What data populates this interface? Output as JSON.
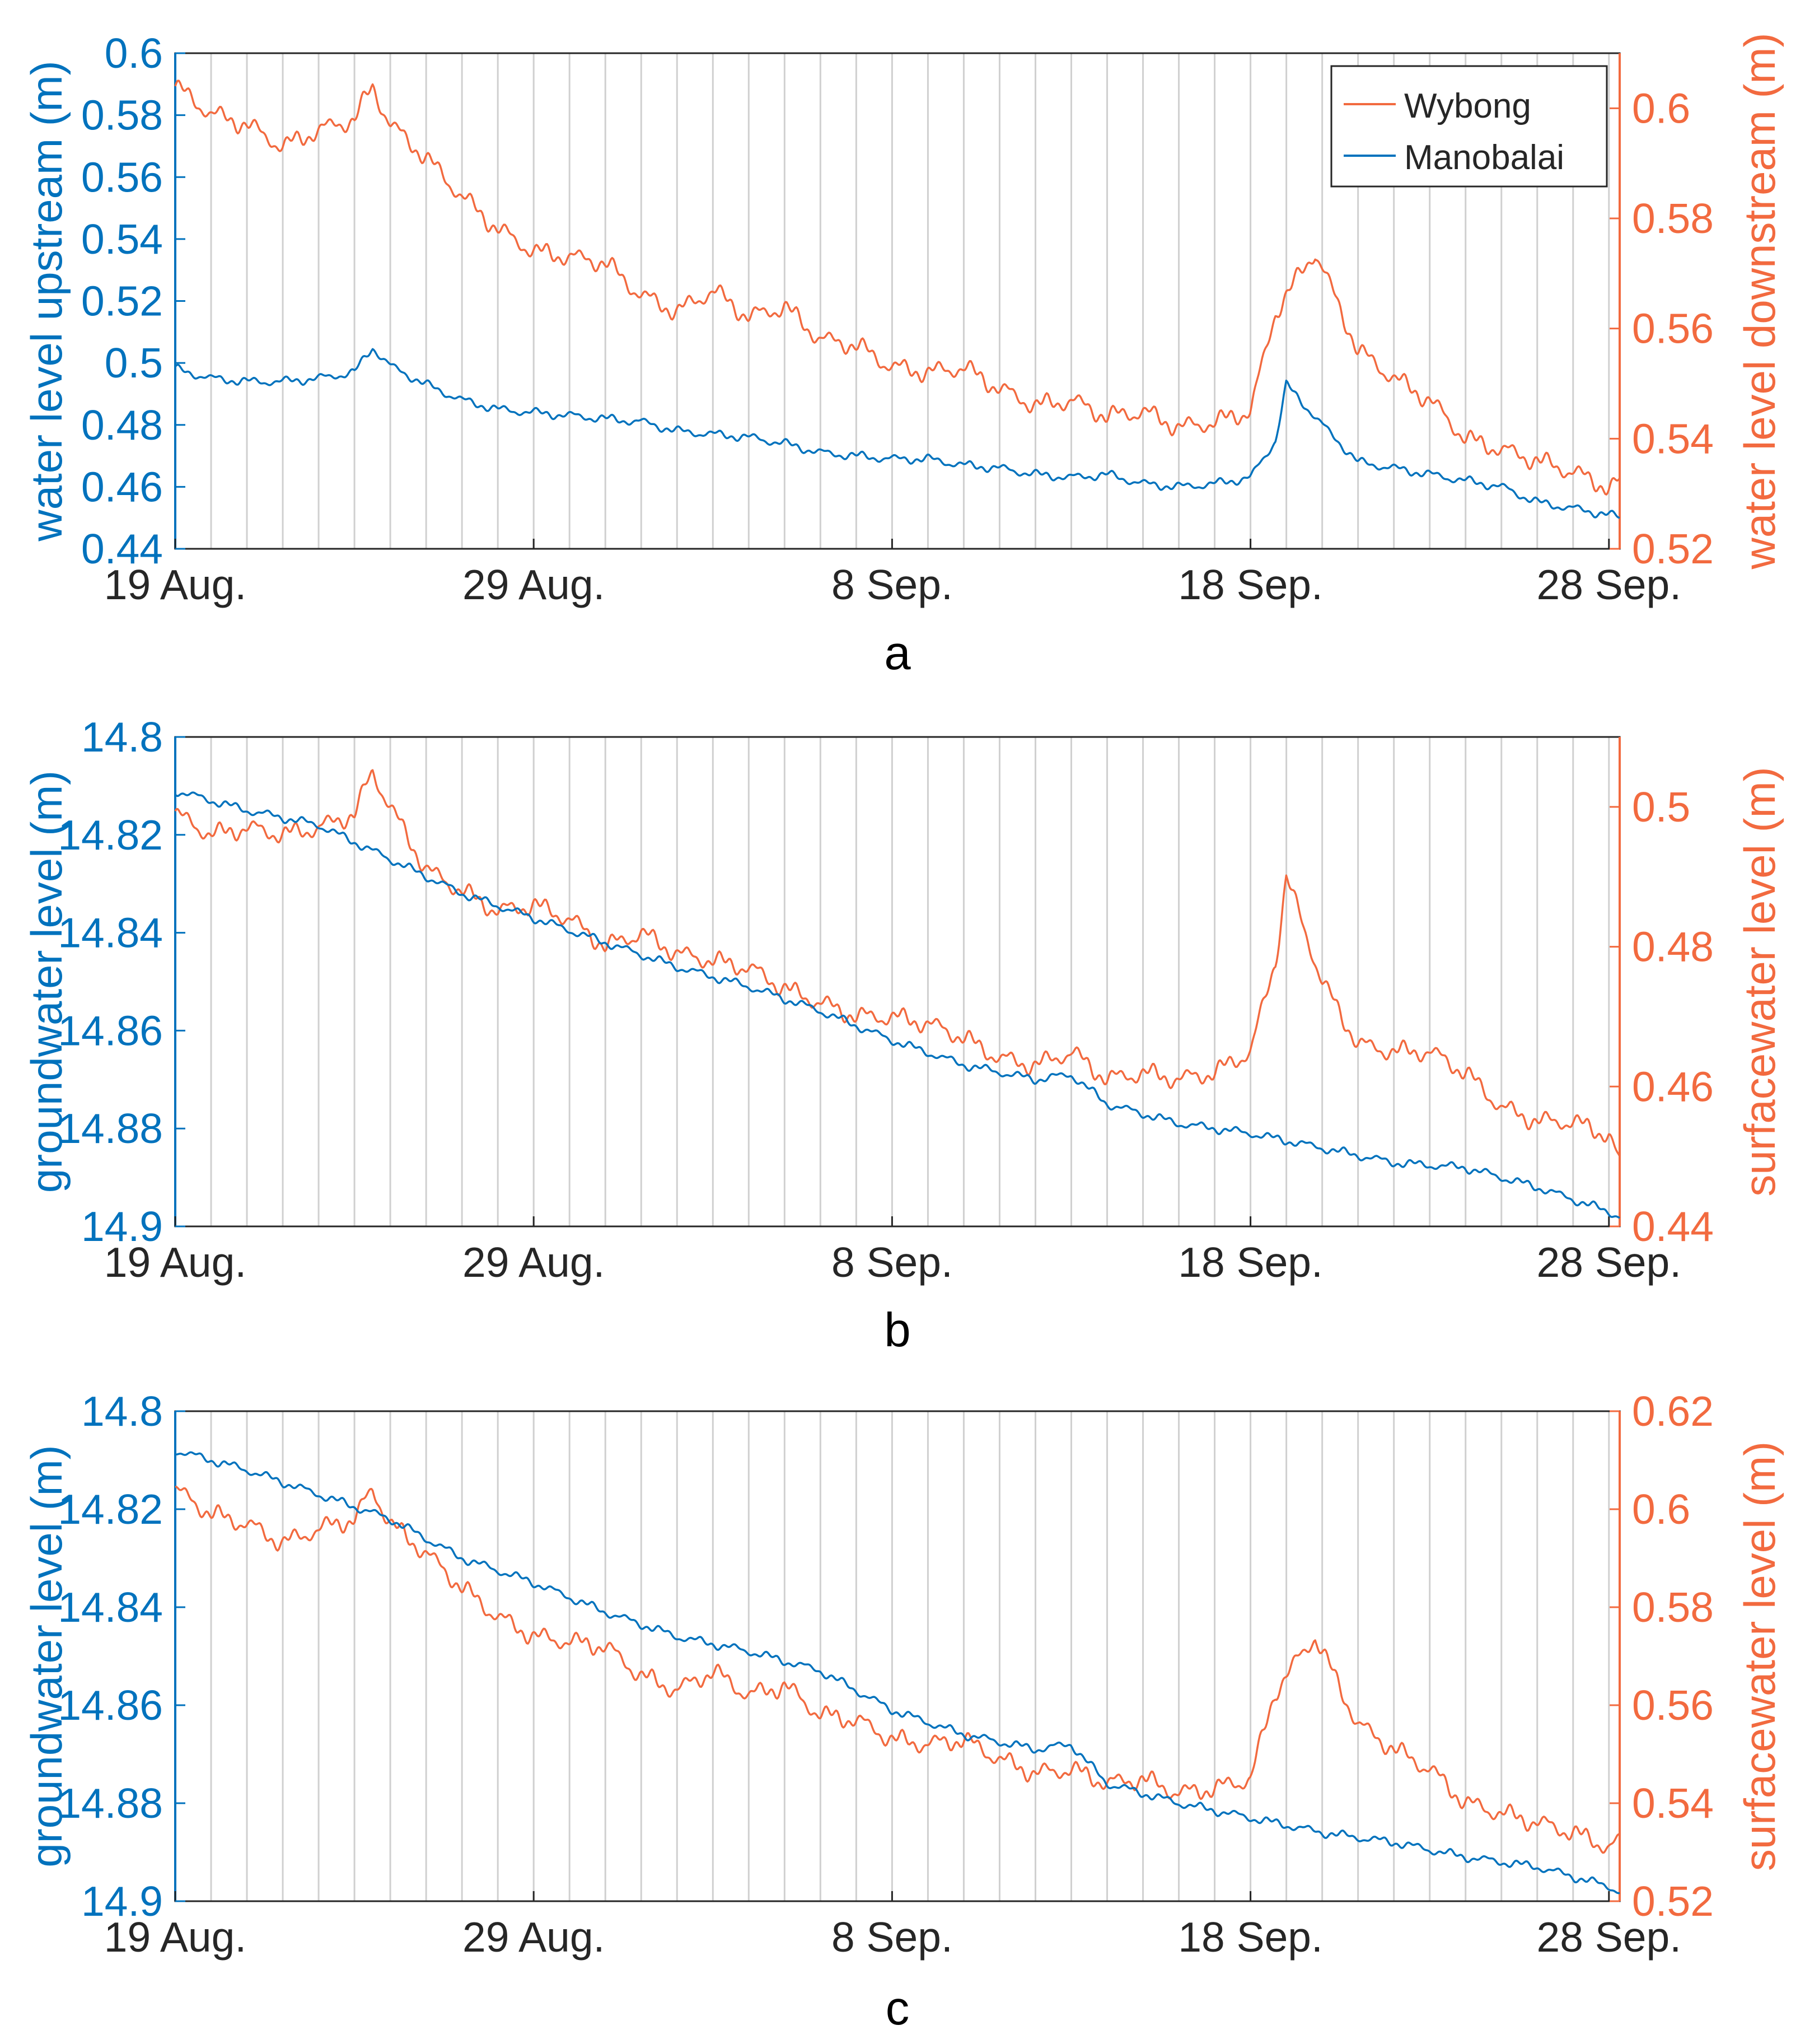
{
  "colors": {
    "left_axis": "#0072BD",
    "right_axis": "#F26A3F",
    "grid": "#D0D0D0",
    "axis": "#262626"
  },
  "chart_data": [
    {
      "panel_label": "a",
      "type": "line",
      "x_tick_labels": [
        "19 Aug.",
        "29 Aug.",
        "8 Sep.",
        "18 Sep.",
        "28 Sep."
      ],
      "x_tick_days": [
        0,
        10,
        20,
        30,
        40
      ],
      "x_range_days": [
        0,
        40.3
      ],
      "ylabel_left": "water level upstream (m)",
      "ylabel_right": "water level downstream (m)",
      "ylim_left": [
        0.44,
        0.6
      ],
      "ylim_right": [
        0.52,
        0.61
      ],
      "yticks_left": [
        "0.44",
        "0.46",
        "0.48",
        "0.5",
        "0.52",
        "0.54",
        "0.56",
        "0.58",
        "0.6"
      ],
      "yticks_right": [
        "0.52",
        "0.54",
        "0.56",
        "0.58",
        "0.6"
      ],
      "legend": {
        "position": "top-right",
        "entries": [
          "Wybong",
          "Manobalai"
        ]
      },
      "series": [
        {
          "name": "Wybong",
          "axis": "right",
          "x_days": [
            0,
            1,
            2,
            3,
            4,
            5,
            5.5,
            6,
            7,
            8,
            9,
            10,
            11,
            12,
            13,
            14,
            15,
            16,
            17,
            18,
            19,
            20,
            21,
            22,
            23,
            24,
            25,
            26,
            27,
            28,
            29,
            30,
            30.7,
            31,
            31.8,
            32,
            33,
            34,
            35,
            36,
            37,
            38,
            39,
            40,
            40.3
          ],
          "values": [
            0.604,
            0.599,
            0.597,
            0.593,
            0.596,
            0.598,
            0.604,
            0.597,
            0.591,
            0.584,
            0.578,
            0.574,
            0.573,
            0.572,
            0.566,
            0.563,
            0.567,
            0.562,
            0.564,
            0.558,
            0.557,
            0.553,
            0.552,
            0.553,
            0.549,
            0.546,
            0.547,
            0.544,
            0.545,
            0.542,
            0.543,
            0.545,
            0.563,
            0.566,
            0.574,
            0.571,
            0.556,
            0.551,
            0.547,
            0.54,
            0.538,
            0.536,
            0.534,
            0.531,
            0.532
          ]
        },
        {
          "name": "Manobalai",
          "axis": "left",
          "x_days": [
            0,
            1,
            2,
            3,
            4,
            5,
            5.5,
            6,
            7,
            8,
            9,
            10,
            11,
            12,
            13,
            14,
            15,
            16,
            17,
            18,
            19,
            20,
            21,
            22,
            23,
            24,
            25,
            26,
            27,
            28,
            29,
            30,
            30.7,
            31,
            32,
            33,
            34,
            35,
            36,
            37,
            38,
            39,
            40,
            40.3
          ],
          "values": [
            0.498,
            0.495,
            0.494,
            0.494,
            0.495,
            0.497,
            0.505,
            0.499,
            0.493,
            0.488,
            0.485,
            0.484,
            0.483,
            0.482,
            0.481,
            0.478,
            0.477,
            0.476,
            0.474,
            0.471,
            0.47,
            0.469,
            0.469,
            0.467,
            0.466,
            0.464,
            0.463,
            0.464,
            0.461,
            0.46,
            0.461,
            0.463,
            0.475,
            0.493,
            0.48,
            0.468,
            0.466,
            0.464,
            0.462,
            0.46,
            0.455,
            0.453,
            0.451,
            0.45
          ]
        }
      ]
    },
    {
      "panel_label": "b",
      "type": "line",
      "x_tick_labels": [
        "19 Aug.",
        "29 Aug.",
        "8 Sep.",
        "18 Sep.",
        "28 Sep."
      ],
      "x_tick_days": [
        0,
        10,
        20,
        30,
        40
      ],
      "x_range_days": [
        0,
        40.3
      ],
      "ylabel_left": "groundwater level (m)",
      "ylabel_right": "surfacewater level (m)",
      "ylim_left": [
        14.9,
        14.8
      ],
      "ylim_right": [
        0.44,
        0.51
      ],
      "yticks_left": [
        "14.8",
        "14.82",
        "14.84",
        "14.86",
        "14.88",
        "14.9"
      ],
      "yticks_right": [
        "0.44",
        "0.46",
        "0.48",
        "0.5"
      ],
      "series": [
        {
          "name": "Wybong",
          "axis": "right",
          "x_days": [
            0,
            1,
            2,
            3,
            4,
            5,
            5.5,
            6,
            7,
            8,
            9,
            10,
            11,
            12,
            13,
            14,
            15,
            16,
            17,
            18,
            19,
            20,
            21,
            22,
            23,
            24,
            25,
            26,
            27,
            28,
            29,
            30,
            30.7,
            31,
            32,
            33,
            34,
            35,
            36,
            37,
            38,
            39,
            40,
            40.3
          ],
          "values": [
            0.499,
            0.496,
            0.497,
            0.496,
            0.497,
            0.499,
            0.505,
            0.5,
            0.491,
            0.488,
            0.485,
            0.486,
            0.484,
            0.48,
            0.482,
            0.479,
            0.478,
            0.477,
            0.474,
            0.472,
            0.47,
            0.47,
            0.469,
            0.467,
            0.464,
            0.463,
            0.465,
            0.461,
            0.462,
            0.461,
            0.462,
            0.465,
            0.478,
            0.49,
            0.475,
            0.466,
            0.465,
            0.465,
            0.462,
            0.457,
            0.455,
            0.455,
            0.453,
            0.449
          ]
        },
        {
          "name": "Manobalai",
          "axis": "left",
          "x_days": [
            0,
            2,
            4,
            6,
            8,
            10,
            12,
            14,
            16,
            18,
            20,
            22,
            24,
            25,
            26,
            28,
            30,
            32,
            34,
            36,
            38,
            40,
            40.3
          ],
          "values": [
            14.811,
            14.815,
            14.818,
            14.825,
            14.832,
            14.837,
            14.842,
            14.847,
            14.851,
            14.856,
            14.862,
            14.867,
            14.87,
            14.869,
            14.875,
            14.879,
            14.881,
            14.884,
            14.887,
            14.888,
            14.892,
            14.897,
            14.898
          ]
        }
      ]
    },
    {
      "panel_label": "c",
      "type": "line",
      "x_tick_labels": [
        "19 Aug.",
        "29 Aug.",
        "8 Sep.",
        "18 Sep.",
        "28 Sep."
      ],
      "x_tick_days": [
        0,
        10,
        20,
        30,
        40
      ],
      "x_range_days": [
        0,
        40.3
      ],
      "ylabel_left": "groundwater level (m)",
      "ylabel_right": "surfacewater level (m)",
      "ylim_left": [
        14.9,
        14.8
      ],
      "ylim_right": [
        0.52,
        0.62
      ],
      "yticks_left": [
        "14.8",
        "14.82",
        "14.84",
        "14.86",
        "14.88",
        "14.9"
      ],
      "yticks_right": [
        "0.52",
        "0.54",
        "0.56",
        "0.58",
        "0.6",
        "0.62"
      ],
      "series": [
        {
          "name": "Wybong",
          "axis": "right",
          "x_days": [
            0,
            1,
            2,
            3,
            4,
            5,
            5.5,
            6,
            7,
            8,
            9,
            10,
            11,
            12,
            13,
            14,
            15,
            16,
            17,
            18,
            19,
            20,
            21,
            22,
            23,
            24,
            25,
            26,
            27,
            28,
            29,
            30,
            30.7,
            31,
            31.8,
            32,
            33,
            34,
            35,
            36,
            37,
            38,
            39,
            40,
            40.3
          ],
          "values": [
            0.604,
            0.599,
            0.597,
            0.593,
            0.596,
            0.598,
            0.604,
            0.597,
            0.591,
            0.584,
            0.578,
            0.574,
            0.573,
            0.572,
            0.566,
            0.563,
            0.567,
            0.562,
            0.564,
            0.558,
            0.557,
            0.553,
            0.552,
            0.553,
            0.549,
            0.546,
            0.547,
            0.544,
            0.545,
            0.542,
            0.543,
            0.545,
            0.563,
            0.566,
            0.574,
            0.571,
            0.556,
            0.551,
            0.547,
            0.54,
            0.538,
            0.536,
            0.534,
            0.531,
            0.532
          ]
        },
        {
          "name": "Manobalai",
          "axis": "left",
          "x_days": [
            0,
            2,
            4,
            6,
            8,
            10,
            12,
            14,
            16,
            18,
            20,
            22,
            24,
            25,
            26,
            28,
            30,
            32,
            34,
            36,
            38,
            40,
            40.3
          ],
          "values": [
            14.808,
            14.812,
            14.817,
            14.822,
            14.83,
            14.835,
            14.841,
            14.846,
            14.849,
            14.853,
            14.861,
            14.866,
            14.869,
            14.868,
            14.876,
            14.88,
            14.883,
            14.886,
            14.888,
            14.891,
            14.893,
            14.897,
            14.898
          ]
        }
      ]
    }
  ]
}
